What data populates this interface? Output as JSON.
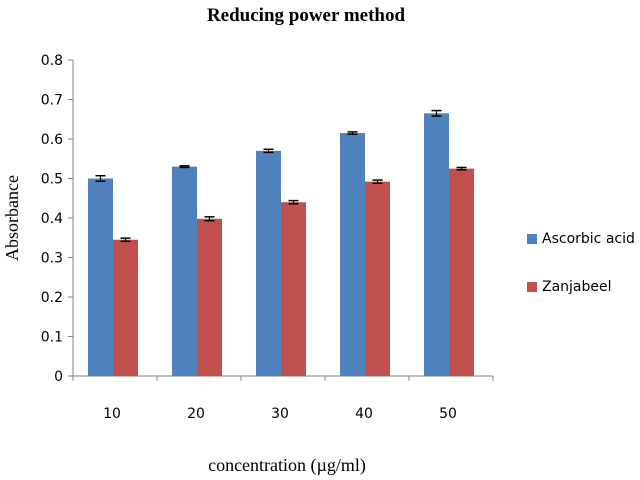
{
  "chart_data": {
    "type": "bar",
    "title": "Reducing power method",
    "xlabel": "concentration (µg/ml)",
    "ylabel": "Absorbance",
    "categories": [
      "10",
      "20",
      "30",
      "40",
      "50"
    ],
    "series": [
      {
        "name": "Ascorbic acid",
        "color": "#4f81bd",
        "values": [
          0.5,
          0.53,
          0.57,
          0.615,
          0.665
        ],
        "errors": [
          0.007,
          0.002,
          0.004,
          0.003,
          0.007
        ]
      },
      {
        "name": "Zanjabeel",
        "color": "#c0504d",
        "values": [
          0.345,
          0.398,
          0.44,
          0.492,
          0.525
        ],
        "errors": [
          0.004,
          0.005,
          0.004,
          0.004,
          0.003
        ]
      }
    ],
    "ylim": [
      0,
      0.8
    ],
    "yticks": [
      "0",
      "0.1",
      "0.2",
      "0.3",
      "0.4",
      "0.5",
      "0.6",
      "0.7",
      "0.8"
    ],
    "grid": false,
    "legend_position": "right"
  }
}
